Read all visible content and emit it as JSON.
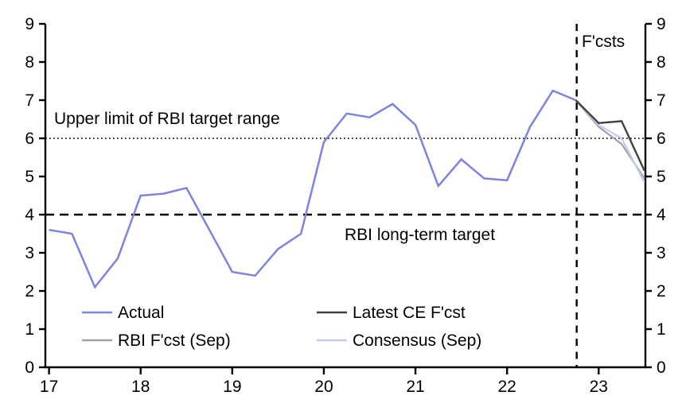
{
  "figure": {
    "background": "#ffffff",
    "axis_color": "#000000"
  },
  "chart_data": {
    "type": "line",
    "title": "",
    "xlabel": "",
    "ylabel": "",
    "grid": "off",
    "x_axis": {
      "min": 16.96,
      "max": 23.51,
      "ticks": [
        17,
        18,
        19,
        20,
        21,
        22,
        23
      ],
      "tick_labels": [
        "17",
        "18",
        "19",
        "20",
        "21",
        "22",
        "23"
      ]
    },
    "y_axis": {
      "min": 0,
      "max": 9,
      "ticks": [
        0,
        1,
        2,
        3,
        4,
        5,
        6,
        7,
        8,
        9
      ],
      "sides": "both"
    },
    "reference_lines": [
      {
        "name": "upper-limit-line",
        "orientation": "horizontal",
        "value": 6,
        "style": "dotted"
      },
      {
        "name": "long-term-target-line",
        "orientation": "horizontal",
        "value": 4,
        "style": "dashed"
      },
      {
        "name": "forecast-start-line",
        "orientation": "vertical",
        "value": 22.76,
        "style": "dashed"
      }
    ],
    "annotations": {
      "upper_limit": "Upper limit of RBI target range",
      "long_term": "RBI long-term target",
      "fcsts": "F'csts"
    },
    "series": [
      {
        "name": "Actual",
        "color": "#7e82e0",
        "width": 2.5,
        "x": [
          17.0,
          17.25,
          17.5,
          17.75,
          18.0,
          18.25,
          18.5,
          18.75,
          19.0,
          19.25,
          19.5,
          19.75,
          20.0,
          20.25,
          20.5,
          20.75,
          21.0,
          21.25,
          21.5,
          21.75,
          22.0,
          22.25,
          22.5,
          22.75
        ],
        "values": [
          3.6,
          3.5,
          2.1,
          2.85,
          4.5,
          4.55,
          4.7,
          3.6,
          2.5,
          2.4,
          3.1,
          3.5,
          5.9,
          6.65,
          6.55,
          6.9,
          6.35,
          4.75,
          5.45,
          4.95,
          4.9,
          6.3,
          7.25,
          7.0
        ]
      },
      {
        "name": "Latest CE F'cst",
        "color": "#3f4042",
        "width": 2.4,
        "x": [
          22.75,
          23.0,
          23.25,
          23.5
        ],
        "values": [
          7.0,
          6.4,
          6.45,
          5.15
        ]
      },
      {
        "name": "RBI F'cst (Sep)",
        "color": "#a2a2a2",
        "width": 2.2,
        "x": [
          22.75,
          23.0,
          23.25,
          23.5
        ],
        "values": [
          7.0,
          6.3,
          5.85,
          4.95
        ]
      },
      {
        "name": "Consensus (Sep)",
        "color": "#c4cbf3",
        "width": 2.2,
        "x": [
          22.75,
          23.0,
          23.25,
          23.5
        ],
        "values": [
          7.0,
          6.35,
          6.0,
          4.85
        ]
      }
    ],
    "legend": {
      "position": "bottom-inside",
      "rows": [
        [
          "Actual",
          "Latest CE F'cst"
        ],
        [
          "RBI F'cst (Sep)",
          "Consensus (Sep)"
        ]
      ]
    }
  }
}
